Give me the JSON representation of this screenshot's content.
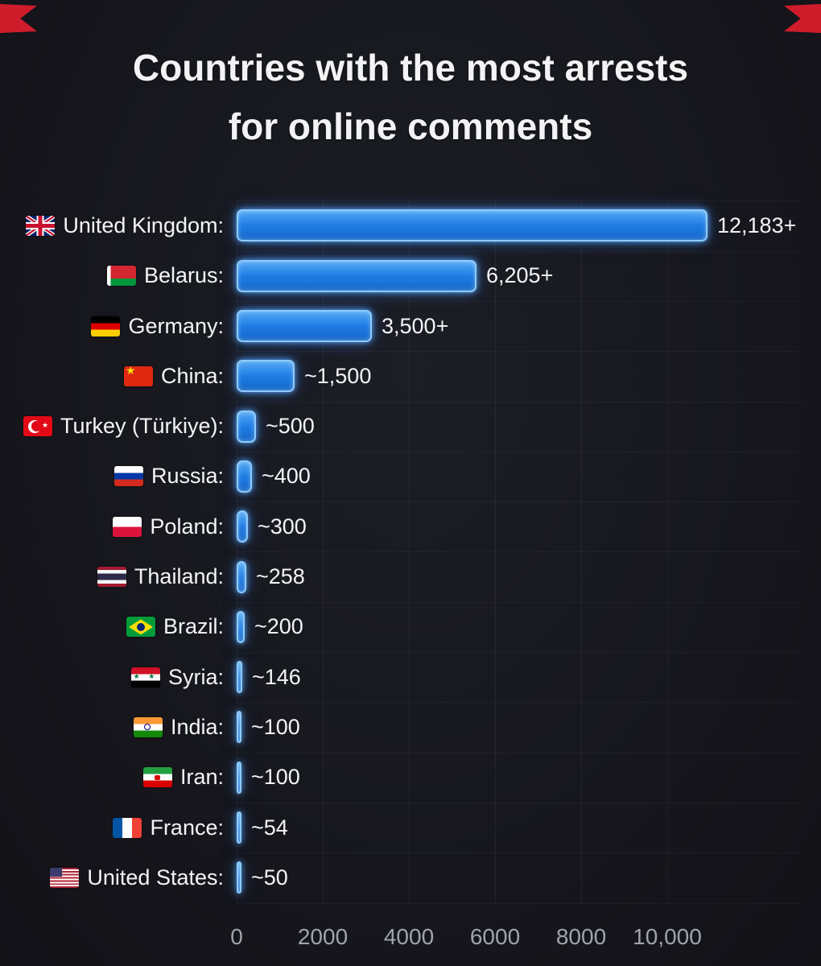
{
  "title": {
    "line1": "Countries with the most arrests",
    "line2": "for online comments"
  },
  "chart_data": {
    "type": "bar",
    "orientation": "horizontal",
    "title": "Countries with the most arrests for online comments",
    "xlabel": "",
    "ylabel": "",
    "xlim": [
      0,
      12500
    ],
    "grid": true,
    "xticks": [
      "0",
      "2000",
      "4000",
      "6000",
      "8000",
      "10,000"
    ],
    "categories": [
      "United Kingdom",
      "Belarus",
      "Germany",
      "China",
      "Turkey (Türkiye)",
      "Russia",
      "Poland",
      "Thailand",
      "Brazil",
      "Syria",
      "India",
      "Iran",
      "France",
      "United States"
    ],
    "rows": [
      {
        "label": "United Kingdom:",
        "flag": "uk",
        "value": 12183,
        "value_label": "12,183+"
      },
      {
        "label": "Belarus:",
        "flag": "belarus",
        "value": 6205,
        "value_label": "6,205+"
      },
      {
        "label": "Germany:",
        "flag": "germany",
        "value": 3500,
        "value_label": "3,500+"
      },
      {
        "label": "China:",
        "flag": "china",
        "value": 1500,
        "value_label": "~1,500"
      },
      {
        "label": "Turkey (Türkiye):",
        "flag": "turkey",
        "value": 500,
        "value_label": "~500"
      },
      {
        "label": "Russia:",
        "flag": "russia",
        "value": 400,
        "value_label": "~400"
      },
      {
        "label": "Poland:",
        "flag": "poland",
        "value": 300,
        "value_label": "~300"
      },
      {
        "label": "Thailand:",
        "flag": "thailand",
        "value": 258,
        "value_label": "~258"
      },
      {
        "label": "Brazil:",
        "flag": "brazil",
        "value": 200,
        "value_label": "~200"
      },
      {
        "label": "Syria:",
        "flag": "syria",
        "value": 146,
        "value_label": "~146"
      },
      {
        "label": "India:",
        "flag": "india",
        "value": 100,
        "value_label": "~100"
      },
      {
        "label": "Iran:",
        "flag": "iran",
        "value": 100,
        "value_label": "~100"
      },
      {
        "label": "France:",
        "flag": "france",
        "value": 54,
        "value_label": "~54"
      },
      {
        "label": "United States:",
        "flag": "us",
        "value": 50,
        "value_label": "~50"
      }
    ],
    "colors": {
      "background": "#17171e",
      "bar": "#2e8ef0",
      "bar_glow": "#8ecbff",
      "text": "#f5f5f7",
      "axis_text": "#a2a3ad",
      "corner_decoration": "#cf1c2b"
    }
  }
}
